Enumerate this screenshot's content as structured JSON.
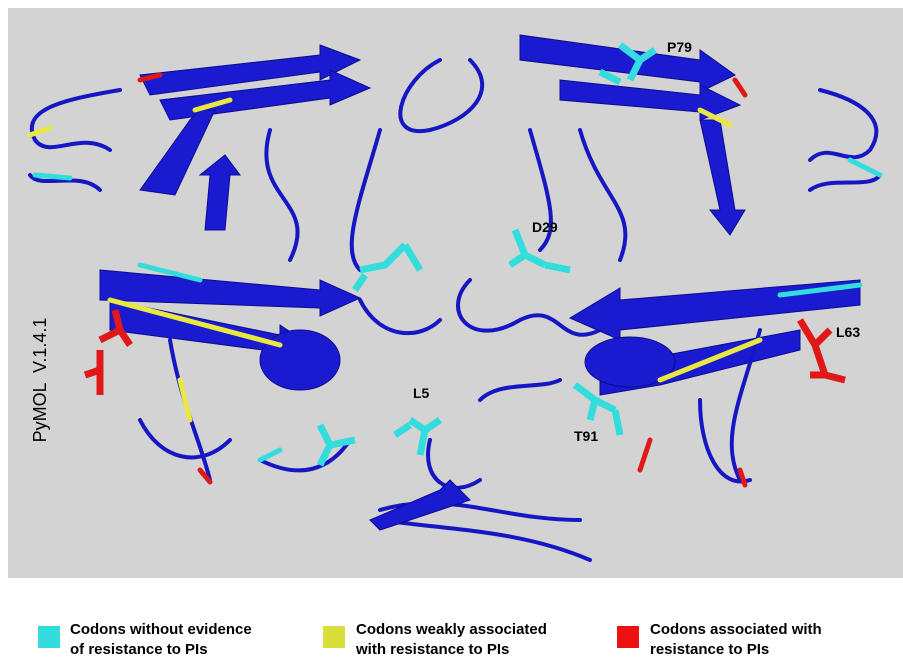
{
  "figure": {
    "watermark": "PyMOL  V.1.4.1",
    "residue_labels": [
      "P79",
      "D29",
      "L63",
      "L5",
      "T91"
    ],
    "legend": [
      {
        "lines": [
          "Codons without evidence",
          "of resistance to PIs"
        ],
        "color": "#33dddd"
      },
      {
        "lines": [
          "Codons weakly associated",
          "with resistance to PIs"
        ],
        "color": "#d8df3a"
      },
      {
        "lines": [
          "Codons associated with",
          "resistance to PIs"
        ],
        "color": "#ee1111"
      }
    ]
  }
}
